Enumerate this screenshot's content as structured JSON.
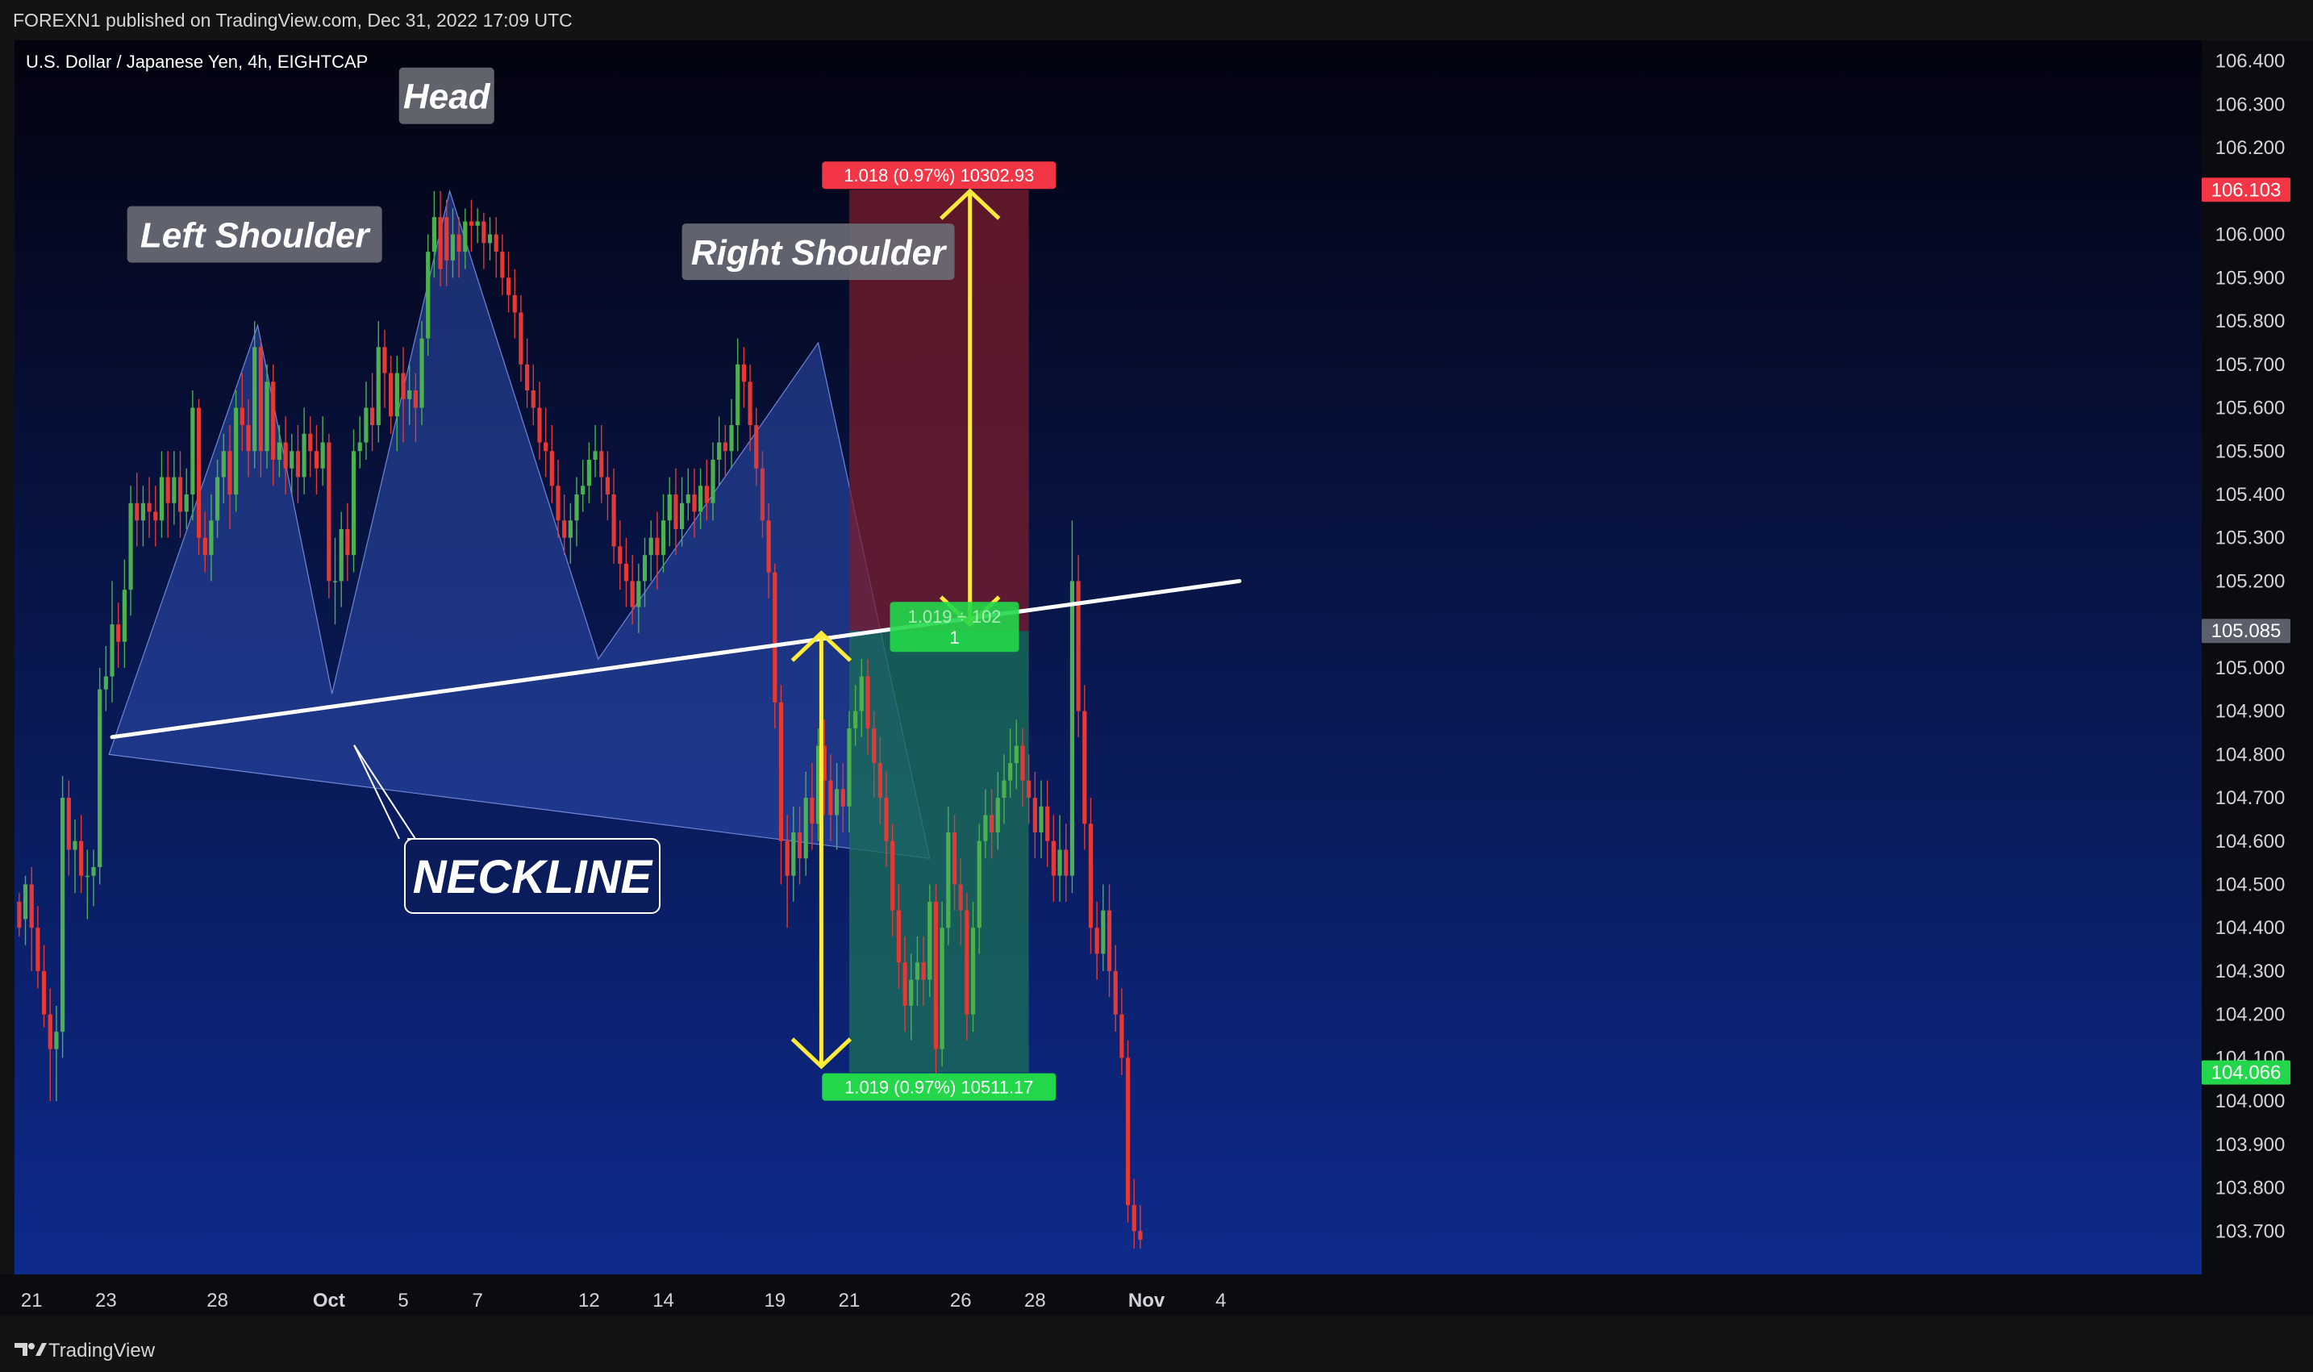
{
  "header": {
    "published_text": "FOREXN1 published on TradingView.com, Dec 31, 2022 17:09 UTC"
  },
  "footer": {
    "brand": "TradingView",
    "logo_icon": "tradingview-logo-icon"
  },
  "chart_data": {
    "type": "candlestick",
    "symbol_title": "U.S. Dollar / Japanese Yen, 4h, EIGHTCAP",
    "colors": {
      "background_top": "#03030f",
      "background_bottom": "#0e2c91",
      "up": "#4caf50",
      "down": "#e53935",
      "pattern_fill": "#2d4fb0",
      "stop_zone": "#7a1e2c",
      "target_zone": "#1a6b5a",
      "arrow": "#ffeb3b",
      "neckline": "#ffffff",
      "label_red": "#f23645",
      "label_green": "#22d84a",
      "current_price_label": "#5a5f6b"
    },
    "y_axis": {
      "ylim": [
        103.6,
        106.42
      ],
      "ticks": [
        "106.400",
        "106.300",
        "106.200",
        "106.000",
        "105.900",
        "105.800",
        "105.700",
        "105.600",
        "105.500",
        "105.400",
        "105.300",
        "105.200",
        "105.000",
        "104.900",
        "104.800",
        "104.700",
        "104.600",
        "104.500",
        "104.400",
        "104.300",
        "104.200",
        "104.100",
        "104.000",
        "103.900",
        "103.800",
        "103.700"
      ],
      "price_tags": [
        {
          "value": "106.103",
          "price": 106.103,
          "color": "#f23645"
        },
        {
          "value": "105.085",
          "price": 105.085,
          "color": "#5a5f6b"
        },
        {
          "value": "104.066",
          "price": 104.066,
          "color": "#22d84a"
        }
      ]
    },
    "x_axis": {
      "ticks": [
        {
          "label": "21",
          "index": 2
        },
        {
          "label": "23",
          "index": 14
        },
        {
          "label": "28",
          "index": 32
        },
        {
          "label": "Oct",
          "index": 50
        },
        {
          "label": "5",
          "index": 62
        },
        {
          "label": "7",
          "index": 74
        },
        {
          "label": "12",
          "index": 92
        },
        {
          "label": "14",
          "index": 104
        },
        {
          "label": "19",
          "index": 122
        },
        {
          "label": "21",
          "index": 134
        },
        {
          "label": "26",
          "index": 152
        },
        {
          "label": "28",
          "index": 164
        },
        {
          "label": "Nov",
          "index": 182
        },
        {
          "label": "4",
          "index": 194
        }
      ]
    },
    "candles": [
      [
        104.46,
        104.4,
        104.48,
        104.38
      ],
      [
        104.42,
        104.5,
        104.52,
        104.36
      ],
      [
        104.5,
        104.4,
        104.54,
        104.3
      ],
      [
        104.4,
        104.3,
        104.45,
        104.26
      ],
      [
        104.3,
        104.2,
        104.36,
        104.17
      ],
      [
        104.2,
        104.12,
        104.26,
        104.0
      ],
      [
        104.12,
        104.16,
        104.22,
        104.0
      ],
      [
        104.16,
        104.7,
        104.75,
        104.1
      ],
      [
        104.7,
        104.58,
        104.74,
        104.52
      ],
      [
        104.58,
        104.6,
        104.65,
        104.48
      ],
      [
        104.6,
        104.52,
        104.66,
        104.48
      ],
      [
        104.52,
        104.52,
        104.58,
        104.42
      ],
      [
        104.52,
        104.54,
        104.58,
        104.45
      ],
      [
        104.54,
        104.95,
        105.0,
        104.5
      ],
      [
        104.95,
        104.98,
        105.05,
        104.9
      ],
      [
        104.98,
        105.1,
        105.2,
        104.92
      ],
      [
        105.1,
        105.06,
        105.15,
        105.0
      ],
      [
        105.06,
        105.18,
        105.25,
        105.0
      ],
      [
        105.18,
        105.38,
        105.42,
        105.12
      ],
      [
        105.38,
        105.34,
        105.45,
        105.28
      ],
      [
        105.34,
        105.38,
        105.42,
        105.28
      ],
      [
        105.38,
        105.36,
        105.44,
        105.3
      ],
      [
        105.36,
        105.34,
        105.42,
        105.28
      ],
      [
        105.34,
        105.44,
        105.5,
        105.3
      ],
      [
        105.44,
        105.38,
        105.5,
        105.3
      ],
      [
        105.38,
        105.44,
        105.5,
        105.33
      ],
      [
        105.44,
        105.36,
        105.5,
        105.3
      ],
      [
        105.36,
        105.4,
        105.46,
        105.32
      ],
      [
        105.4,
        105.6,
        105.64,
        105.34
      ],
      [
        105.6,
        105.3,
        105.62,
        105.26
      ],
      [
        105.3,
        105.26,
        105.36,
        105.22
      ],
      [
        105.26,
        105.34,
        105.4,
        105.2
      ],
      [
        105.34,
        105.44,
        105.48,
        105.3
      ],
      [
        105.44,
        105.5,
        105.54,
        105.38
      ],
      [
        105.5,
        105.4,
        105.56,
        105.32
      ],
      [
        105.4,
        105.6,
        105.64,
        105.36
      ],
      [
        105.6,
        105.56,
        105.68,
        105.5
      ],
      [
        105.56,
        105.5,
        105.62,
        105.44
      ],
      [
        105.5,
        105.74,
        105.8,
        105.46
      ],
      [
        105.74,
        105.5,
        105.76,
        105.44
      ],
      [
        105.5,
        105.66,
        105.7,
        105.46
      ],
      [
        105.66,
        105.48,
        105.7,
        105.42
      ],
      [
        105.48,
        105.52,
        105.56,
        105.44
      ],
      [
        105.52,
        105.46,
        105.58,
        105.4
      ],
      [
        105.46,
        105.5,
        105.54,
        105.4
      ],
      [
        105.5,
        105.44,
        105.56,
        105.38
      ],
      [
        105.44,
        105.54,
        105.6,
        105.4
      ],
      [
        105.54,
        105.5,
        105.58,
        105.44
      ],
      [
        105.5,
        105.46,
        105.56,
        105.4
      ],
      [
        105.46,
        105.52,
        105.58,
        105.42
      ],
      [
        105.52,
        105.2,
        105.54,
        105.16
      ],
      [
        105.2,
        105.2,
        105.3,
        105.1
      ],
      [
        105.2,
        105.32,
        105.36,
        105.14
      ],
      [
        105.32,
        105.26,
        105.38,
        105.2
      ],
      [
        105.26,
        105.5,
        105.55,
        105.22
      ],
      [
        105.5,
        105.52,
        105.58,
        105.46
      ],
      [
        105.52,
        105.6,
        105.66,
        105.48
      ],
      [
        105.6,
        105.56,
        105.68,
        105.5
      ],
      [
        105.56,
        105.74,
        105.8,
        105.52
      ],
      [
        105.74,
        105.68,
        105.78,
        105.6
      ],
      [
        105.68,
        105.58,
        105.72,
        105.54
      ],
      [
        105.58,
        105.68,
        105.72,
        105.5
      ],
      [
        105.68,
        105.62,
        105.74,
        105.52
      ],
      [
        105.62,
        105.64,
        105.7,
        105.56
      ],
      [
        105.64,
        105.6,
        105.68,
        105.52
      ],
      [
        105.6,
        105.76,
        105.8,
        105.56
      ],
      [
        105.76,
        105.96,
        106.0,
        105.72
      ],
      [
        105.96,
        106.04,
        106.1,
        105.9
      ],
      [
        106.04,
        105.92,
        106.1,
        105.88
      ],
      [
        106.04,
        105.94,
        106.08,
        105.88
      ],
      [
        105.94,
        106.0,
        106.06,
        105.9
      ],
      [
        106.0,
        105.96,
        106.04,
        105.9
      ],
      [
        105.96,
        106.03,
        106.06,
        105.92
      ],
      [
        106.03,
        106.02,
        106.08,
        105.96
      ],
      [
        106.02,
        106.03,
        106.06,
        105.98
      ],
      [
        106.03,
        105.98,
        106.05,
        105.92
      ],
      [
        105.98,
        106.0,
        106.04,
        105.94
      ],
      [
        106.0,
        105.96,
        106.04,
        105.9
      ],
      [
        105.96,
        105.9,
        106.0,
        105.86
      ],
      [
        105.9,
        105.86,
        105.96,
        105.82
      ],
      [
        105.86,
        105.82,
        105.92,
        105.76
      ],
      [
        105.82,
        105.7,
        105.86,
        105.66
      ],
      [
        105.7,
        105.64,
        105.76,
        105.6
      ],
      [
        105.64,
        105.6,
        105.7,
        105.56
      ],
      [
        105.6,
        105.52,
        105.66,
        105.48
      ],
      [
        105.52,
        105.5,
        105.6,
        105.44
      ],
      [
        105.5,
        105.42,
        105.56,
        105.38
      ],
      [
        105.42,
        105.34,
        105.48,
        105.3
      ],
      [
        105.34,
        105.3,
        105.4,
        105.26
      ],
      [
        105.3,
        105.34,
        105.38,
        105.24
      ],
      [
        105.34,
        105.4,
        105.44,
        105.28
      ],
      [
        105.4,
        105.42,
        105.48,
        105.36
      ],
      [
        105.42,
        105.48,
        105.52,
        105.38
      ],
      [
        105.48,
        105.5,
        105.56,
        105.44
      ],
      [
        105.5,
        105.44,
        105.56,
        105.38
      ],
      [
        105.44,
        105.4,
        105.5,
        105.34
      ],
      [
        105.4,
        105.28,
        105.46,
        105.24
      ],
      [
        105.28,
        105.24,
        105.34,
        105.18
      ],
      [
        105.24,
        105.2,
        105.3,
        105.14
      ],
      [
        105.2,
        105.14,
        105.26,
        105.1
      ],
      [
        105.14,
        105.2,
        105.24,
        105.08
      ],
      [
        105.2,
        105.26,
        105.3,
        105.14
      ],
      [
        105.26,
        105.3,
        105.34,
        105.2
      ],
      [
        105.3,
        105.26,
        105.36,
        105.18
      ],
      [
        105.26,
        105.34,
        105.4,
        105.22
      ],
      [
        105.34,
        105.4,
        105.44,
        105.28
      ],
      [
        105.4,
        105.32,
        105.46,
        105.26
      ],
      [
        105.32,
        105.38,
        105.44,
        105.28
      ],
      [
        105.38,
        105.4,
        105.46,
        105.34
      ],
      [
        105.4,
        105.36,
        105.46,
        105.3
      ],
      [
        105.36,
        105.42,
        105.46,
        105.32
      ],
      [
        105.42,
        105.38,
        105.48,
        105.34
      ],
      [
        105.38,
        105.48,
        105.52,
        105.34
      ],
      [
        105.48,
        105.52,
        105.58,
        105.42
      ],
      [
        105.52,
        105.5,
        105.56,
        105.44
      ],
      [
        105.5,
        105.56,
        105.62,
        105.46
      ],
      [
        105.56,
        105.7,
        105.76,
        105.5
      ],
      [
        105.7,
        105.66,
        105.74,
        105.6
      ],
      [
        105.66,
        105.56,
        105.7,
        105.5
      ],
      [
        105.56,
        105.46,
        105.6,
        105.42
      ],
      [
        105.46,
        105.34,
        105.5,
        105.3
      ],
      [
        105.34,
        105.22,
        105.38,
        105.16
      ],
      [
        105.22,
        104.92,
        105.24,
        104.86
      ],
      [
        104.92,
        104.6,
        104.96,
        104.5
      ],
      [
        104.6,
        104.52,
        104.66,
        104.4
      ],
      [
        104.52,
        104.62,
        104.68,
        104.46
      ],
      [
        104.62,
        104.56,
        104.68,
        104.5
      ],
      [
        104.56,
        104.7,
        104.76,
        104.52
      ],
      [
        104.7,
        104.64,
        104.78,
        104.58
      ],
      [
        104.64,
        104.82,
        104.86,
        104.6
      ],
      [
        104.82,
        104.74,
        104.88,
        104.66
      ],
      [
        104.74,
        104.66,
        104.8,
        104.6
      ],
      [
        104.66,
        104.72,
        104.78,
        104.58
      ],
      [
        104.72,
        104.68,
        104.78,
        104.62
      ],
      [
        104.68,
        104.86,
        104.9,
        104.62
      ],
      [
        104.86,
        104.9,
        104.96,
        104.82
      ],
      [
        104.9,
        104.98,
        105.02,
        104.84
      ],
      [
        104.98,
        104.86,
        105.02,
        104.8
      ],
      [
        104.86,
        104.78,
        104.9,
        104.7
      ],
      [
        104.78,
        104.7,
        104.84,
        104.64
      ],
      [
        104.7,
        104.6,
        104.76,
        104.54
      ],
      [
        104.6,
        104.44,
        104.64,
        104.38
      ],
      [
        104.44,
        104.32,
        104.5,
        104.26
      ],
      [
        104.32,
        104.22,
        104.38,
        104.16
      ],
      [
        104.22,
        104.28,
        104.34,
        104.14
      ],
      [
        104.28,
        104.32,
        104.38,
        104.22
      ],
      [
        104.32,
        104.28,
        104.38,
        104.22
      ],
      [
        104.28,
        104.46,
        104.5,
        104.24
      ],
      [
        104.46,
        104.12,
        104.5,
        104.06
      ],
      [
        104.12,
        104.4,
        104.46,
        104.08
      ],
      [
        104.4,
        104.62,
        104.68,
        104.36
      ],
      [
        104.62,
        104.5,
        104.66,
        104.44
      ],
      [
        104.5,
        104.44,
        104.56,
        104.36
      ],
      [
        104.44,
        104.2,
        104.48,
        104.14
      ],
      [
        104.2,
        104.4,
        104.46,
        104.16
      ],
      [
        104.4,
        104.6,
        104.64,
        104.34
      ],
      [
        104.6,
        104.66,
        104.72,
        104.56
      ],
      [
        104.66,
        104.62,
        104.72,
        104.56
      ],
      [
        104.62,
        104.7,
        104.76,
        104.58
      ],
      [
        104.7,
        104.74,
        104.8,
        104.64
      ],
      [
        104.74,
        104.78,
        104.86,
        104.7
      ],
      [
        104.78,
        104.82,
        104.88,
        104.72
      ],
      [
        104.82,
        104.74,
        104.86,
        104.68
      ],
      [
        104.74,
        104.7,
        104.8,
        104.64
      ],
      [
        104.7,
        104.62,
        104.76,
        104.56
      ],
      [
        104.62,
        104.68,
        104.74,
        104.56
      ],
      [
        104.68,
        104.6,
        104.74,
        104.54
      ],
      [
        104.6,
        104.52,
        104.66,
        104.46
      ],
      [
        104.52,
        104.58,
        104.66,
        104.46
      ],
      [
        104.58,
        104.52,
        104.64,
        104.46
      ],
      [
        104.52,
        105.2,
        105.34,
        104.48
      ],
      [
        105.2,
        104.9,
        105.26,
        104.84
      ],
      [
        104.9,
        104.64,
        104.96,
        104.58
      ],
      [
        104.64,
        104.4,
        104.7,
        104.34
      ],
      [
        104.4,
        104.34,
        104.46,
        104.28
      ],
      [
        104.34,
        104.44,
        104.5,
        104.3
      ],
      [
        104.44,
        104.3,
        104.5,
        104.24
      ],
      [
        104.3,
        104.2,
        104.36,
        104.16
      ],
      [
        104.2,
        104.1,
        104.26,
        104.06
      ],
      [
        104.1,
        103.76,
        104.14,
        103.72
      ],
      [
        103.76,
        103.7,
        103.82,
        103.66
      ],
      [
        103.7,
        103.68,
        103.76,
        103.66
      ]
    ],
    "shaded_candle_indices": [
      120,
      152
    ],
    "pattern_polygon": [
      [
        14.5,
        104.8
      ],
      [
        38.5,
        105.79
      ],
      [
        50.5,
        104.94
      ],
      [
        69.5,
        106.1
      ],
      [
        93.5,
        105.02
      ],
      [
        129,
        105.75
      ],
      [
        147,
        104.56
      ]
    ],
    "pattern_labels": [
      {
        "text": "Left Shoulder",
        "index": 38,
        "price": 106.0
      },
      {
        "text": "Head",
        "index": 69,
        "price": 106.32
      },
      {
        "text": "Right Shoulder",
        "index": 129,
        "price": 105.96
      }
    ],
    "neckline": {
      "label": "NECKLINE",
      "from": [
        15,
        104.84
      ],
      "to": [
        197,
        105.2
      ]
    },
    "risk_reward": {
      "entry": 105.085,
      "stop": 106.103,
      "target": 104.066,
      "start_index": 134,
      "end_index": 163,
      "stop_label": "1.018 (0.97%) 10302.93",
      "target_label": "1.019 (0.97%) 10511.17",
      "ratio_label_line1": "1.019 ÷ 102",
      "ratio_label_line2": "1"
    },
    "arrows": [
      {
        "index": 153.5,
        "from": 106.1,
        "to": 105.1
      },
      {
        "index": 129.5,
        "from": 105.08,
        "to": 104.08
      }
    ]
  }
}
